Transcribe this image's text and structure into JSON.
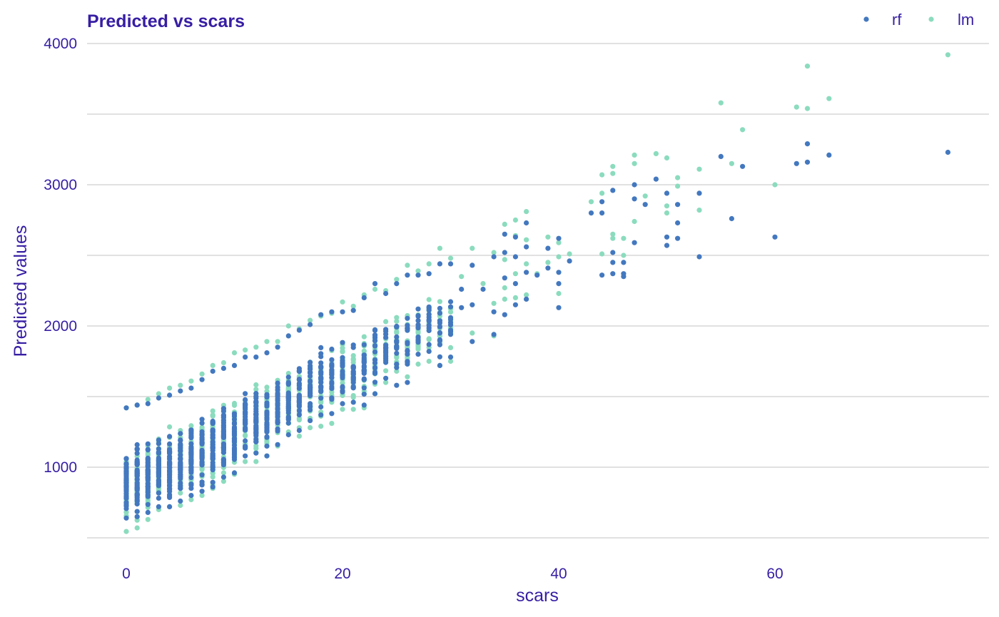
{
  "chart_data": {
    "type": "scatter",
    "title": "Predicted vs scars",
    "xlabel": "scars",
    "ylabel": "Predicted values",
    "xlim": [
      -4,
      79.5
    ],
    "ylim": [
      500,
      4050
    ],
    "x_ticks": [
      0,
      20,
      40,
      60
    ],
    "y_ticks": [
      1000,
      2000,
      3000,
      4000
    ],
    "y_gridlines": [
      500,
      1000,
      1500,
      2000,
      2500,
      3000,
      3500,
      4000
    ],
    "legend_position": "top-right",
    "colors": {
      "rf": "#4378bf",
      "lm": "#8bdcbe",
      "text": "#371ea3",
      "grid": "#e1e1e1"
    },
    "series": [
      {
        "name": "lm",
        "color": "#8bdcbe",
        "note": "columns listed as [scars, min, max, point_count] for the dense region; explicit points for sparse region",
        "columns": [
          [
            0,
            545,
            1420,
            48
          ],
          [
            1,
            570,
            1440,
            48
          ],
          [
            2,
            630,
            1480,
            46
          ],
          [
            3,
            700,
            1520,
            44
          ],
          [
            4,
            720,
            1560,
            42
          ],
          [
            5,
            730,
            1580,
            42
          ],
          [
            6,
            770,
            1610,
            40
          ],
          [
            7,
            800,
            1660,
            40
          ],
          [
            8,
            850,
            1720,
            38
          ],
          [
            9,
            900,
            1740,
            36
          ],
          [
            10,
            950,
            1810,
            36
          ],
          [
            11,
            1040,
            1830,
            34
          ],
          [
            12,
            1040,
            1850,
            34
          ],
          [
            13,
            1080,
            1890,
            32
          ],
          [
            14,
            1150,
            1890,
            30
          ],
          [
            15,
            1250,
            2000,
            30
          ],
          [
            16,
            1220,
            1980,
            28
          ],
          [
            17,
            1280,
            2040,
            28
          ],
          [
            18,
            1290,
            2070,
            26
          ],
          [
            19,
            1310,
            2090,
            24
          ],
          [
            20,
            1410,
            2170,
            24
          ],
          [
            21,
            1410,
            2140,
            22
          ],
          [
            22,
            1420,
            2220,
            22
          ],
          [
            23,
            1520,
            2260,
            20
          ],
          [
            24,
            1600,
            2250,
            20
          ],
          [
            25,
            1680,
            2330,
            18
          ],
          [
            26,
            1640,
            2430,
            16
          ],
          [
            27,
            1730,
            2390,
            14
          ],
          [
            28,
            1750,
            2440,
            14
          ],
          [
            29,
            1720,
            2550,
            14
          ],
          [
            30,
            1750,
            2480,
            12
          ]
        ],
        "points": [
          [
            31,
            2350
          ],
          [
            32,
            2550
          ],
          [
            32,
            1950
          ],
          [
            33,
            2300
          ],
          [
            34,
            2520
          ],
          [
            34,
            2160
          ],
          [
            34,
            1930
          ],
          [
            35,
            2720
          ],
          [
            35,
            2470
          ],
          [
            35,
            2270
          ],
          [
            35,
            2190
          ],
          [
            36,
            2750
          ],
          [
            36,
            2640
          ],
          [
            36,
            2370
          ],
          [
            36,
            2200
          ],
          [
            37,
            2810
          ],
          [
            37,
            2610
          ],
          [
            37,
            2440
          ],
          [
            37,
            2220
          ],
          [
            38,
            2370
          ],
          [
            39,
            2630
          ],
          [
            39,
            2450
          ],
          [
            40,
            2590
          ],
          [
            40,
            2490
          ],
          [
            40,
            2230
          ],
          [
            41,
            2510
          ],
          [
            43,
            2880
          ],
          [
            44,
            3070
          ],
          [
            44,
            2940
          ],
          [
            44,
            2510
          ],
          [
            45,
            3130
          ],
          [
            45,
            3080
          ],
          [
            45,
            2650
          ],
          [
            45,
            2620
          ],
          [
            46,
            2620
          ],
          [
            46,
            2500
          ],
          [
            47,
            3210
          ],
          [
            47,
            3150
          ],
          [
            47,
            2740
          ],
          [
            48,
            2920
          ],
          [
            49,
            3220
          ],
          [
            50,
            3190
          ],
          [
            50,
            2850
          ],
          [
            50,
            2800
          ],
          [
            51,
            3050
          ],
          [
            51,
            2990
          ],
          [
            53,
            3110
          ],
          [
            53,
            2820
          ],
          [
            55,
            3580
          ],
          [
            56,
            3150
          ],
          [
            57,
            3390
          ],
          [
            60,
            3000
          ],
          [
            62,
            3550
          ],
          [
            63,
            3840
          ],
          [
            63,
            3540
          ],
          [
            65,
            3610
          ],
          [
            76,
            3920
          ]
        ]
      },
      {
        "name": "rf",
        "color": "#4378bf",
        "note": "columns listed as [scars, min, max, point_count] for the dense region; explicit points for sparse region",
        "columns": [
          [
            0,
            640,
            1420,
            48
          ],
          [
            1,
            650,
            1440,
            48
          ],
          [
            2,
            680,
            1450,
            46
          ],
          [
            3,
            720,
            1490,
            44
          ],
          [
            4,
            720,
            1510,
            42
          ],
          [
            5,
            760,
            1540,
            42
          ],
          [
            6,
            800,
            1560,
            40
          ],
          [
            7,
            830,
            1620,
            40
          ],
          [
            8,
            860,
            1680,
            38
          ],
          [
            9,
            930,
            1700,
            36
          ],
          [
            10,
            960,
            1720,
            36
          ],
          [
            11,
            1080,
            1780,
            34
          ],
          [
            12,
            1100,
            1780,
            34
          ],
          [
            13,
            1080,
            1810,
            32
          ],
          [
            14,
            1160,
            1850,
            30
          ],
          [
            15,
            1230,
            1930,
            30
          ],
          [
            16,
            1260,
            1970,
            28
          ],
          [
            17,
            1330,
            2010,
            28
          ],
          [
            18,
            1370,
            2080,
            26
          ],
          [
            19,
            1380,
            2100,
            24
          ],
          [
            20,
            1450,
            2100,
            24
          ],
          [
            21,
            1460,
            2110,
            22
          ],
          [
            22,
            1440,
            2200,
            22
          ],
          [
            23,
            1520,
            2300,
            20
          ],
          [
            24,
            1630,
            2230,
            20
          ],
          [
            25,
            1580,
            2300,
            18
          ],
          [
            26,
            1600,
            2360,
            16
          ],
          [
            27,
            1800,
            2360,
            14
          ],
          [
            28,
            1820,
            2370,
            14
          ],
          [
            29,
            1720,
            2440,
            14
          ],
          [
            30,
            1780,
            2440,
            12
          ]
        ],
        "points": [
          [
            31,
            2260
          ],
          [
            31,
            2130
          ],
          [
            32,
            2430
          ],
          [
            32,
            2150
          ],
          [
            32,
            1890
          ],
          [
            33,
            2260
          ],
          [
            34,
            2490
          ],
          [
            34,
            2100
          ],
          [
            34,
            1940
          ],
          [
            35,
            2650
          ],
          [
            35,
            2520
          ],
          [
            35,
            2340
          ],
          [
            35,
            2080
          ],
          [
            36,
            2630
          ],
          [
            36,
            2490
          ],
          [
            36,
            2300
          ],
          [
            36,
            2150
          ],
          [
            37,
            2730
          ],
          [
            37,
            2560
          ],
          [
            37,
            2380
          ],
          [
            37,
            2190
          ],
          [
            38,
            2360
          ],
          [
            39,
            2550
          ],
          [
            39,
            2410
          ],
          [
            40,
            2620
          ],
          [
            40,
            2380
          ],
          [
            40,
            2300
          ],
          [
            40,
            2130
          ],
          [
            41,
            2460
          ],
          [
            43,
            2800
          ],
          [
            44,
            2880
          ],
          [
            44,
            2800
          ],
          [
            44,
            2360
          ],
          [
            45,
            2960
          ],
          [
            45,
            2520
          ],
          [
            45,
            2450
          ],
          [
            45,
            2370
          ],
          [
            46,
            2450
          ],
          [
            46,
            2370
          ],
          [
            46,
            2350
          ],
          [
            47,
            3000
          ],
          [
            47,
            2900
          ],
          [
            47,
            2590
          ],
          [
            48,
            2860
          ],
          [
            49,
            3040
          ],
          [
            50,
            2940
          ],
          [
            50,
            2630
          ],
          [
            50,
            2570
          ],
          [
            51,
            2860
          ],
          [
            51,
            2730
          ],
          [
            51,
            2620
          ],
          [
            53,
            2940
          ],
          [
            53,
            2490
          ],
          [
            55,
            3200
          ],
          [
            56,
            2760
          ],
          [
            57,
            3130
          ],
          [
            60,
            2630
          ],
          [
            62,
            3150
          ],
          [
            63,
            3290
          ],
          [
            63,
            3160
          ],
          [
            65,
            3210
          ],
          [
            76,
            3230
          ]
        ]
      }
    ]
  }
}
